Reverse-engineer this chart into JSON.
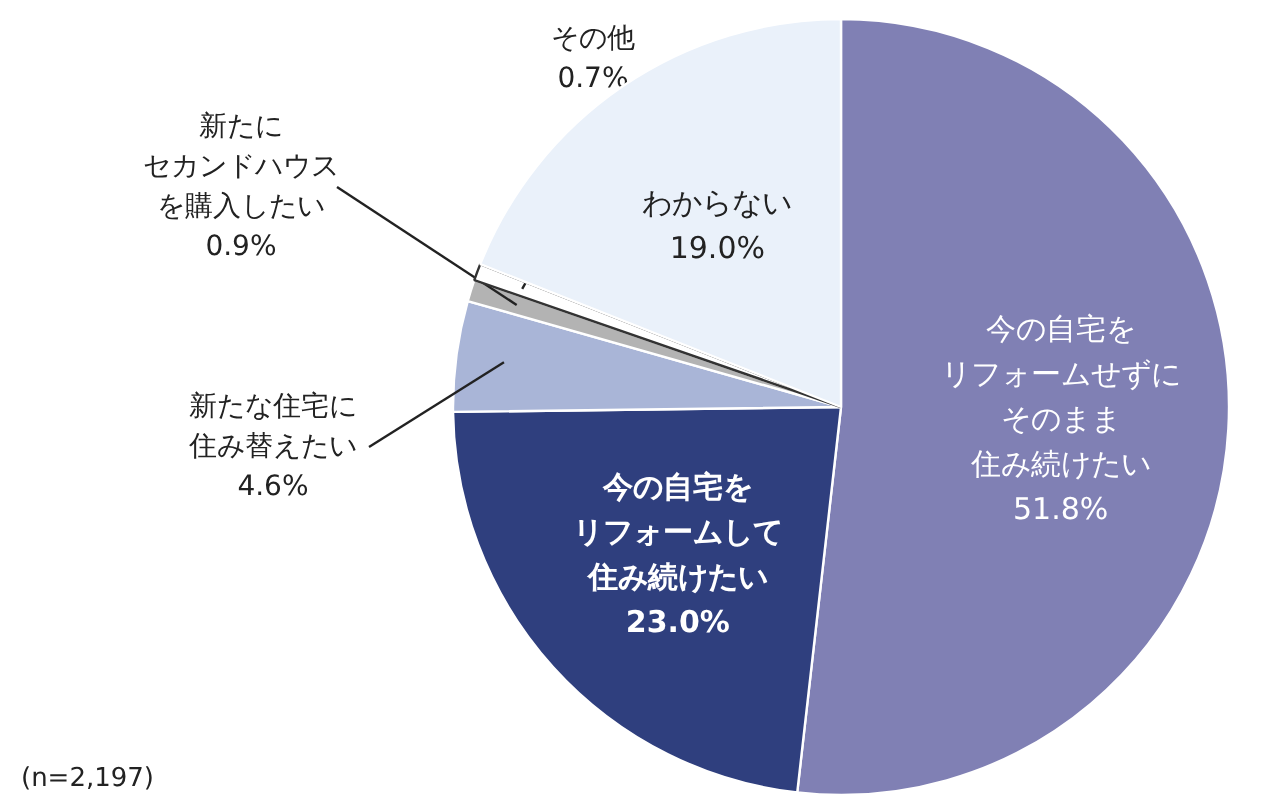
{
  "chart_data": {
    "type": "pie",
    "categories": [
      "今の自宅をリフォームせずにそのまま住み続けたい",
      "今の自宅をリフォームして住み続けたい",
      "新たな住宅に住み替えたい",
      "新たにセカンドハウスを購入したい",
      "その他",
      "わからない"
    ],
    "values": [
      51.8,
      23.0,
      4.6,
      0.9,
      0.7,
      19.0
    ],
    "colors": [
      "#8080b4",
      "#2f3f7e",
      "#a9b5d7",
      "#b3b3b3",
      "#ffffff",
      "#eaf1fa"
    ],
    "value_labels": [
      "51.8%",
      "23.0%",
      "4.6%",
      "0.9%",
      "0.7%",
      "19.0%"
    ],
    "annotations": [
      "(n=2,197)"
    ]
  }
}
